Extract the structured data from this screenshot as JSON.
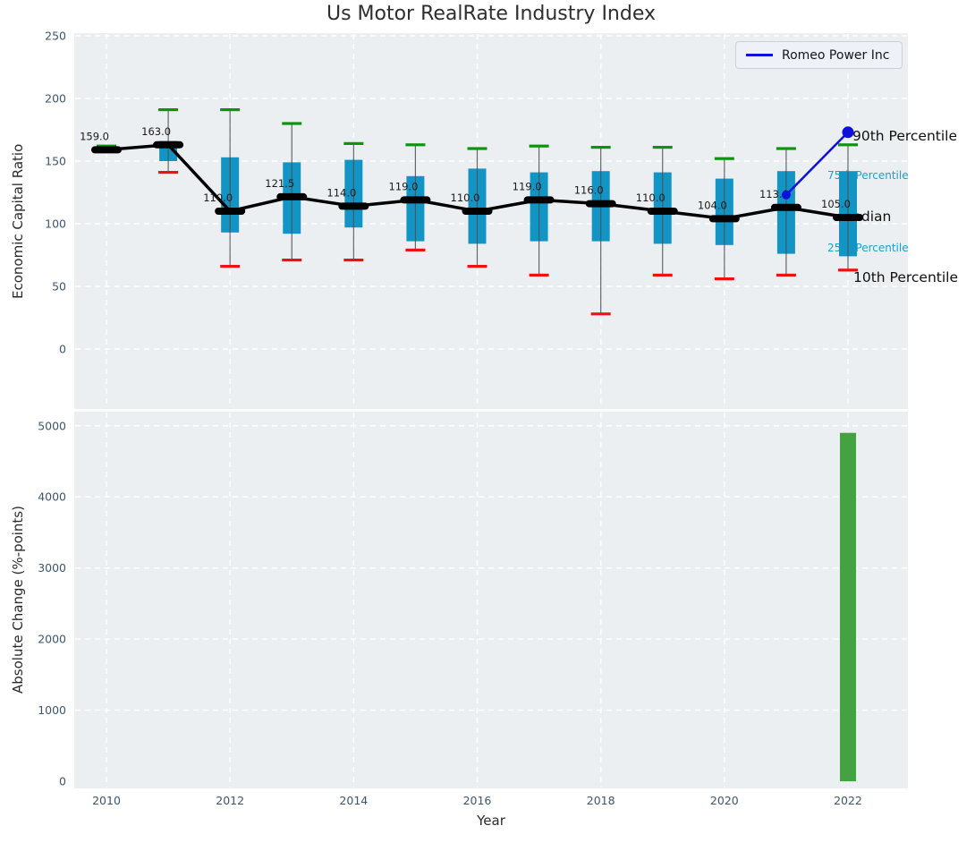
{
  "title": "Us Motor RealRate Industry Index",
  "legend": {
    "label": "Romeo Power Inc"
  },
  "annotations": {
    "p90": "90th Percentile",
    "p75": "75th Percentile",
    "median": "Median",
    "p25": "25th Percentile",
    "p10": "10th Percentile"
  },
  "axis": {
    "xlabel": "Year",
    "ylabel_top": "Economic Capital Ratio",
    "ylabel_bottom": "Absolute Change (%-points)"
  },
  "colors": {
    "box_fill": "#1295c5",
    "p90_cap": "#0e930e",
    "p10_cap": "#ee1111",
    "median_marker": "#000000",
    "median_line": "#000000",
    "romeo_line": "#1010dd",
    "bar_fill": "#43a340",
    "plot_bg": "#eceff1",
    "grid": "#ffffff",
    "tick_label": "#3d566e",
    "whisker": "#4f4f4f"
  },
  "chart_data": [
    {
      "type": "boxplot+line",
      "title": "Us Motor RealRate Industry Index",
      "ylabel": "Economic Capital Ratio",
      "yticks": [
        0,
        50,
        100,
        150,
        200,
        250
      ],
      "ylim": [
        -48,
        252
      ],
      "xticks": [
        2010,
        2012,
        2014,
        2016,
        2018,
        2020,
        2022
      ],
      "grid": "white dashed on light gray, legend upper-right",
      "boxes": [
        {
          "year": 2010,
          "p10": null,
          "p25": null,
          "median": 159.0,
          "p75": null,
          "p90": 162,
          "label": "159.0"
        },
        {
          "year": 2011,
          "p10": 141,
          "p25": 150,
          "median": 163.0,
          "p75": 166,
          "p90": 191,
          "label": "163.0"
        },
        {
          "year": 2012,
          "p10": 66,
          "p25": 93,
          "median": 110.0,
          "p75": 153,
          "p90": 191,
          "label": "110.0"
        },
        {
          "year": 2013,
          "p10": 71,
          "p25": 92,
          "median": 121.5,
          "p75": 149,
          "p90": 180,
          "label": "121.5"
        },
        {
          "year": 2014,
          "p10": 71,
          "p25": 97,
          "median": 114.0,
          "p75": 151,
          "p90": 164,
          "label": "114.0"
        },
        {
          "year": 2015,
          "p10": 79,
          "p25": 86,
          "median": 119.0,
          "p75": 138,
          "p90": 163,
          "label": "119.0"
        },
        {
          "year": 2016,
          "p10": 66,
          "p25": 84,
          "median": 110.0,
          "p75": 144,
          "p90": 160,
          "label": "110.0"
        },
        {
          "year": 2017,
          "p10": 59,
          "p25": 86,
          "median": 119.0,
          "p75": 141,
          "p90": 162,
          "label": "119.0"
        },
        {
          "year": 2018,
          "p10": 28,
          "p25": 86,
          "median": 116.0,
          "p75": 142,
          "p90": 161,
          "label": "116.0"
        },
        {
          "year": 2019,
          "p10": 59,
          "p25": 84,
          "median": 110.0,
          "p75": 141,
          "p90": 161,
          "label": "110.0"
        },
        {
          "year": 2020,
          "p10": 56,
          "p25": 83,
          "median": 104.0,
          "p75": 136,
          "p90": 152,
          "label": "104.0"
        },
        {
          "year": 2021,
          "p10": 59,
          "p25": 76,
          "median": 113.0,
          "p75": 142,
          "p90": 160,
          "label": "113.0"
        },
        {
          "year": 2022,
          "p10": 63,
          "p25": 74,
          "median": 105.0,
          "p75": 142,
          "p90": 163,
          "label": "105.0"
        }
      ],
      "series": [
        {
          "name": "Median",
          "x": [
            2010,
            2011,
            2012,
            2013,
            2014,
            2015,
            2016,
            2017,
            2018,
            2019,
            2020,
            2021,
            2022
          ],
          "values": [
            159.0,
            163.0,
            110.0,
            121.5,
            114.0,
            119.0,
            110.0,
            119.0,
            116.0,
            110.0,
            104.0,
            113.0,
            105.0
          ]
        },
        {
          "name": "Romeo Power Inc",
          "x": [
            2021,
            2022
          ],
          "values": [
            123,
            173
          ]
        }
      ]
    },
    {
      "type": "bar",
      "ylabel": "Absolute Change (%-points)",
      "xlabel": "Year",
      "yticks": [
        0,
        1000,
        2000,
        3000,
        4000,
        5000
      ],
      "ylim": [
        -130,
        5170
      ],
      "categories": [
        2022
      ],
      "values": [
        4900
      ]
    }
  ]
}
